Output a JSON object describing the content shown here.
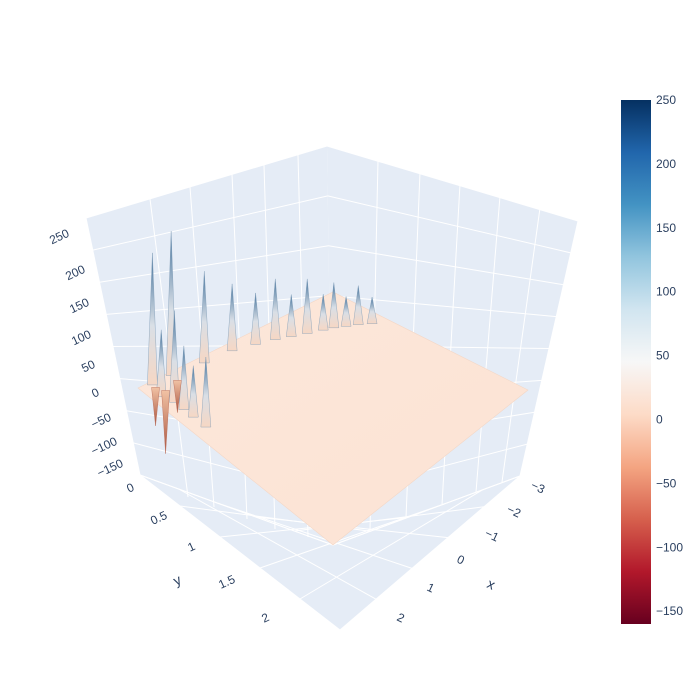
{
  "chart_data": {
    "type": "surface3d",
    "title": "",
    "axes": {
      "x": {
        "title": "x",
        "ticks": [
          "−3",
          "−2",
          "−1",
          "0",
          "1",
          "2"
        ]
      },
      "y": {
        "title": "y",
        "ticks": [
          "0",
          "0.5",
          "1",
          "1.5",
          "2"
        ]
      },
      "z": {
        "title": "",
        "ticks": [
          "−150",
          "−100",
          "−50",
          "0",
          "50",
          "100",
          "150",
          "200",
          "250"
        ]
      }
    },
    "x_range": [
      -3.1,
      3.1
    ],
    "y_range": [
      0,
      2.6
    ],
    "z_range": [
      -160,
      260
    ],
    "surface_base_value": 12,
    "spikes": [
      {
        "x": -3.0,
        "y": 2.2,
        "z": 245
      },
      {
        "x": -2.9,
        "y": 1.8,
        "z": 160
      },
      {
        "x": -2.85,
        "y": 1.45,
        "z": 120
      },
      {
        "x": -2.7,
        "y": 1.2,
        "z": 95
      },
      {
        "x": -2.55,
        "y": 1.0,
        "z": 110
      },
      {
        "x": -2.4,
        "y": 0.85,
        "z": 80
      },
      {
        "x": -2.25,
        "y": 0.7,
        "z": 100
      },
      {
        "x": -2.1,
        "y": 0.55,
        "z": 70
      },
      {
        "x": -2.0,
        "y": 0.45,
        "z": 85
      },
      {
        "x": -1.85,
        "y": 0.35,
        "z": 60
      },
      {
        "x": -1.7,
        "y": 0.25,
        "z": 75
      },
      {
        "x": -1.5,
        "y": 0.15,
        "z": 55
      },
      {
        "x": -2.6,
        "y": 2.5,
        "z": 120
      },
      {
        "x": -2.3,
        "y": 2.45,
        "z": 160
      },
      {
        "x": -2.0,
        "y": 2.45,
        "z": 115
      },
      {
        "x": -1.7,
        "y": 2.45,
        "z": 95
      },
      {
        "x": -1.3,
        "y": 2.45,
        "z": 125
      },
      {
        "x": -3.0,
        "y": 2.45,
        "z": 225
      }
    ],
    "dips": [
      {
        "x": -2.9,
        "y": 2.45,
        "z": -50
      },
      {
        "x": -2.8,
        "y": 2.2,
        "z": -40
      },
      {
        "x": -2.7,
        "y": 2.4,
        "z": -90
      }
    ],
    "colorscale": {
      "name": "RdBu",
      "min": -160,
      "max": 250,
      "stops": [
        [
          0.0,
          "#67001f"
        ],
        [
          0.1,
          "#b2182b"
        ],
        [
          0.2,
          "#d6604d"
        ],
        [
          0.3,
          "#f4a582"
        ],
        [
          0.4,
          "#fddbc7"
        ],
        [
          0.5,
          "#f7f7f7"
        ],
        [
          0.6,
          "#d1e5f0"
        ],
        [
          0.7,
          "#92c5de"
        ],
        [
          0.8,
          "#4393c3"
        ],
        [
          0.9,
          "#2166ac"
        ],
        [
          1.0,
          "#053061"
        ]
      ],
      "ticks": [
        "250",
        "200",
        "150",
        "100",
        "50",
        "0",
        "−50",
        "−100",
        "−150"
      ],
      "tick_values": [
        250,
        200,
        150,
        100,
        50,
        0,
        -50,
        -100,
        -150
      ]
    },
    "scene_background": "#e5ecf6",
    "grid_color": "#ffffff"
  }
}
